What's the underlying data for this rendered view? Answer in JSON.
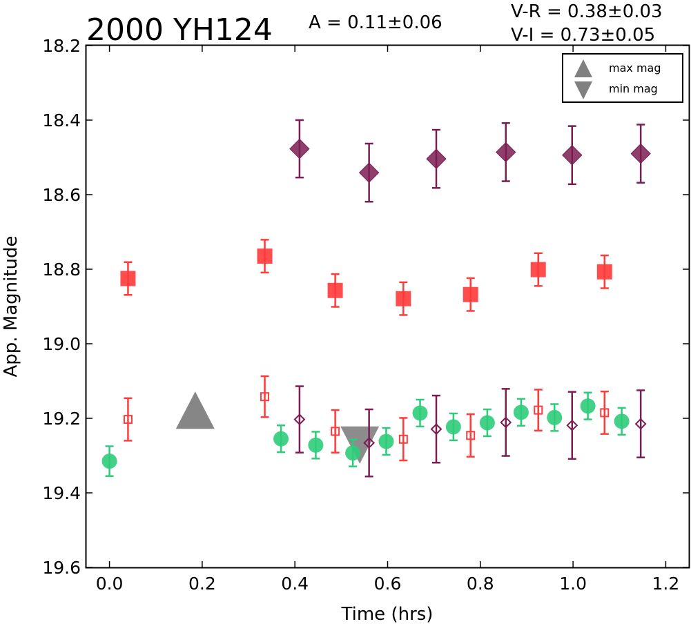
{
  "chart_data": {
    "type": "scatter",
    "title": "2000 YH124",
    "annotations": {
      "amplitude": "A  = 0.11±0.06",
      "color_vr": "V-R = 0.38±0.03",
      "color_vi": "V-I  = 0.73±0.05"
    },
    "xlabel": "Time (hrs)",
    "ylabel": "App. Magnitude",
    "xlim": [
      -0.05,
      1.25
    ],
    "ylim": [
      18.2,
      19.6
    ],
    "y_inverted": true,
    "x_ticks": [
      0.0,
      0.2,
      0.4,
      0.6,
      0.8,
      1.0,
      1.2
    ],
    "x_tick_labels": [
      "0.0",
      "0.2",
      "0.4",
      "0.6",
      "0.8",
      "1.0",
      "1.2"
    ],
    "y_ticks": [
      18.2,
      18.4,
      18.6,
      18.8,
      19.0,
      19.2,
      19.4,
      19.6
    ],
    "y_tick_labels": [
      "18.2",
      "18.4",
      "18.6",
      "18.8",
      "19.0",
      "19.2",
      "19.4",
      "19.6"
    ],
    "grid": false,
    "legend_position": "top-right",
    "legend": [
      {
        "label": "max mag",
        "marker": "triangle-up",
        "color": "#808080"
      },
      {
        "label": "min mag",
        "marker": "triangle-down",
        "color": "#808080"
      }
    ],
    "series": [
      {
        "marker": "diamond-filled",
        "color": "#7b1d52",
        "x": [
          0.41,
          0.56,
          0.705,
          0.855,
          0.998,
          1.146
        ],
        "y": [
          18.477,
          18.541,
          18.504,
          18.486,
          18.494,
          18.49
        ],
        "err": [
          0.077,
          0.078,
          0.078,
          0.078,
          0.078,
          0.078
        ]
      },
      {
        "marker": "square-filled",
        "color": "#ff3a3a",
        "x": [
          0.04,
          0.335,
          0.487,
          0.634,
          0.779,
          0.925,
          1.068
        ],
        "y": [
          18.825,
          18.765,
          18.857,
          18.879,
          18.868,
          18.801,
          18.807
        ],
        "err": [
          0.044,
          0.044,
          0.044,
          0.044,
          0.044,
          0.044,
          0.044
        ]
      },
      {
        "marker": "circle-filled",
        "color": "#2ecc7a",
        "x": [
          0.0,
          0.37,
          0.445,
          0.525,
          0.597,
          0.67,
          0.742,
          0.815,
          0.888,
          0.96,
          1.032,
          1.105
        ],
        "y": [
          19.315,
          19.255,
          19.272,
          19.293,
          19.262,
          19.186,
          19.223,
          19.212,
          19.184,
          19.198,
          19.167,
          19.208
        ],
        "err": [
          0.04,
          0.036,
          0.036,
          0.036,
          0.036,
          0.036,
          0.036,
          0.036,
          0.036,
          0.036,
          0.036,
          0.036
        ]
      },
      {
        "marker": "square-open",
        "color": "#ff3a3a",
        "x": [
          0.04,
          0.335,
          0.487,
          0.634,
          0.779,
          0.925,
          1.068
        ],
        "y": [
          19.203,
          19.142,
          19.235,
          19.256,
          19.246,
          19.178,
          19.185
        ],
        "err": [
          0.057,
          0.055,
          0.057,
          0.057,
          0.057,
          0.055,
          0.057
        ]
      },
      {
        "marker": "diamond-open",
        "color": "#7b1d52",
        "x": [
          0.41,
          0.56,
          0.705,
          0.855,
          0.998,
          1.146
        ],
        "y": [
          19.203,
          19.266,
          19.229,
          19.211,
          19.219,
          19.215
        ],
        "err": [
          0.089,
          0.09,
          0.09,
          0.09,
          0.09,
          0.09
        ]
      }
    ],
    "extrema": [
      {
        "kind": "max",
        "marker": "triangle-up",
        "color": "#808080",
        "x": 0.185,
        "y": 19.18
      },
      {
        "kind": "min",
        "marker": "triangle-down",
        "color": "#808080",
        "x": 0.54,
        "y": 19.27
      }
    ]
  }
}
